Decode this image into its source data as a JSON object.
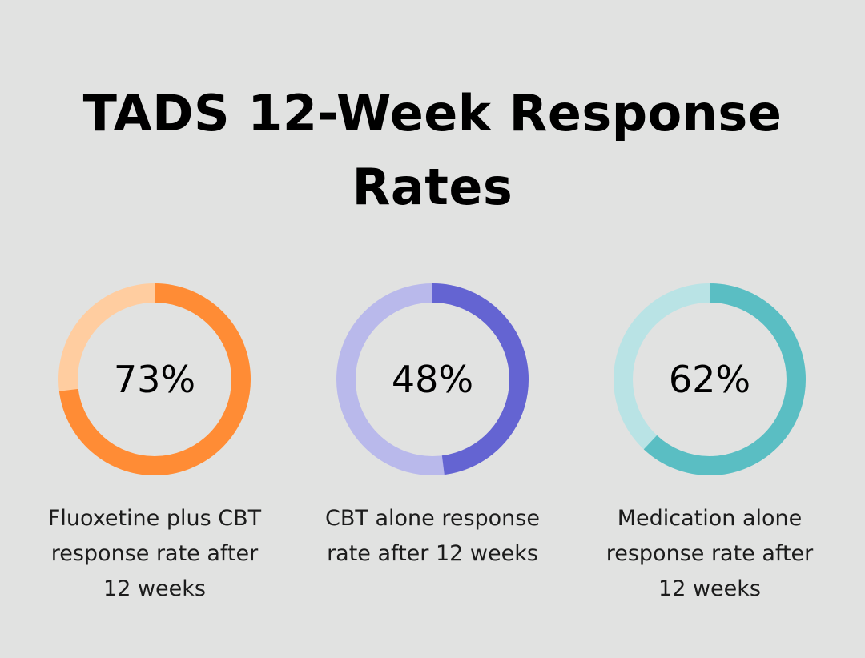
{
  "chart_data": {
    "type": "pie",
    "title": "TADS 12-Week Response Rates",
    "series": [
      {
        "value": 73,
        "display": "73%",
        "label": "Fluoxetine plus CBT response rate after 12 weeks",
        "color": "#ff8c35",
        "track_color": "#ffcda0"
      },
      {
        "value": 48,
        "display": "48%",
        "label": "CBT alone response rate after 12 weeks",
        "color": "#6464d2",
        "track_color": "#b9b9eb"
      },
      {
        "value": 62,
        "display": "62%",
        "label": "Medication alone response rate after 12 weeks",
        "color": "#5abec3",
        "track_color": "#b9e3e5"
      }
    ]
  }
}
